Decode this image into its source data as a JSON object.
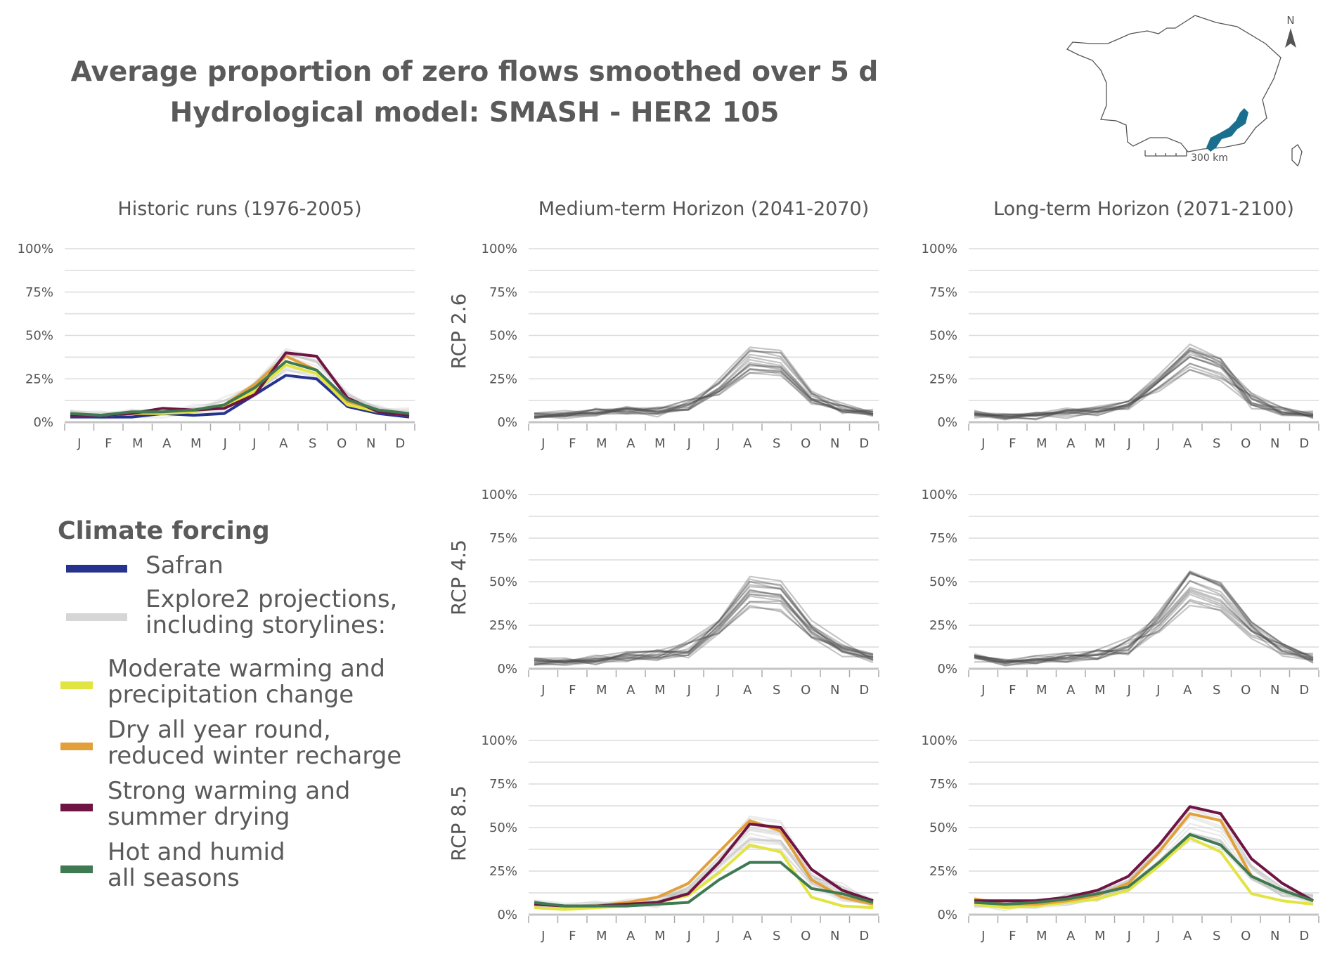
{
  "title_line1": "Average proportion of zero flows smoothed over 5 d",
  "title_line2": "Hydrological model: SMASH - HER2 105",
  "map": {
    "scale_label": "300 km",
    "north_label": "N",
    "highlight_color": "#1a6f8f"
  },
  "months": [
    "J",
    "F",
    "M",
    "A",
    "M",
    "J",
    "J",
    "A",
    "S",
    "O",
    "N",
    "D"
  ],
  "column_titles": [
    "Historic runs (1976-2005)",
    "Medium-term Horizon (2041-2070)",
    "Long-term Horizon (2071-2100)"
  ],
  "row_labels": [
    "RCP 2.6",
    "RCP 4.5",
    "RCP 8.5"
  ],
  "legend": {
    "title": "Climate forcing",
    "items": [
      {
        "label": "Safran",
        "color": "#25338f"
      },
      {
        "label": "Explore2 projections,\nincluding storylines:",
        "color": "#d6d6d6"
      },
      {
        "label": "Moderate warming and\nprecipitation change",
        "color": "#e2e442"
      },
      {
        "label": "Dry all year round,\nreduced winter recharge",
        "color": "#e2a03a"
      },
      {
        "label": "Strong warming and\nsummer drying",
        "color": "#6f1543"
      },
      {
        "label": "Hot and humid\nall seasons",
        "color": "#3f7a52"
      }
    ]
  },
  "chart_data": [
    {
      "type": "line",
      "panel": "historic",
      "title": "Historic runs (1976-2005)",
      "x": [
        "J",
        "F",
        "M",
        "A",
        "M",
        "J",
        "J",
        "A",
        "S",
        "O",
        "N",
        "D"
      ],
      "ylim": [
        0,
        100
      ],
      "yticks": [
        "0%",
        "25%",
        "50%",
        "75%",
        "100%"
      ],
      "projection_band": {
        "n": 16,
        "color": "#c8c8c8",
        "values": [
          5,
          4,
          5,
          5,
          7,
          10,
          20,
          35,
          31,
          14,
          7,
          5
        ]
      },
      "series": [
        {
          "name": "Safran",
          "color": "#25338f",
          "values": [
            3,
            3,
            3,
            5,
            4,
            5,
            16,
            27,
            25,
            9,
            5,
            3
          ]
        },
        {
          "name": "Moderate warming and precipitation change",
          "color": "#e2e442",
          "values": [
            4,
            4,
            5,
            5,
            6,
            9,
            18,
            33,
            28,
            10,
            6,
            4
          ]
        },
        {
          "name": "Dry all year round, reduced winter recharge",
          "color": "#e2a03a",
          "values": [
            5,
            4,
            5,
            6,
            7,
            10,
            22,
            38,
            30,
            12,
            7,
            5
          ]
        },
        {
          "name": "Strong warming and summer drying",
          "color": "#6f1543",
          "values": [
            4,
            4,
            5,
            8,
            7,
            8,
            16,
            40,
            38,
            14,
            6,
            4
          ]
        },
        {
          "name": "Hot and humid all seasons",
          "color": "#3f7a52",
          "values": [
            5,
            4,
            6,
            6,
            7,
            10,
            20,
            35,
            30,
            13,
            7,
            5
          ]
        }
      ]
    },
    {
      "type": "line",
      "panel": "rcp26-mid",
      "title": "Medium-term Horizon (2041-2070)",
      "row": "RCP 2.6",
      "ylim": [
        0,
        100
      ],
      "projection_band": {
        "n": 16,
        "color": "#4a4a4a",
        "values": [
          4,
          4,
          5,
          6,
          6,
          9,
          20,
          36,
          34,
          14,
          8,
          5
        ]
      }
    },
    {
      "type": "line",
      "panel": "rcp26-long",
      "title": "Long-term Horizon (2071-2100)",
      "row": "RCP 2.6",
      "ylim": [
        0,
        100
      ],
      "projection_band": {
        "n": 16,
        "color": "#4a4a4a",
        "values": [
          4,
          3,
          4,
          5,
          6,
          9,
          22,
          36,
          30,
          12,
          6,
          4
        ]
      }
    },
    {
      "type": "line",
      "panel": "rcp45-mid",
      "title": "Medium-term Horizon (2041-2070)",
      "row": "RCP 4.5",
      "ylim": [
        0,
        100
      ],
      "projection_band": {
        "n": 16,
        "color": "#4a4a4a",
        "values": [
          4,
          4,
          5,
          7,
          8,
          11,
          24,
          44,
          42,
          22,
          11,
          6
        ]
      }
    },
    {
      "type": "line",
      "panel": "rcp45-long",
      "title": "Long-term Horizon (2071-2100)",
      "row": "RCP 4.5",
      "ylim": [
        0,
        100
      ],
      "projection_band": {
        "n": 16,
        "color": "#4a4a4a",
        "values": [
          6,
          4,
          5,
          7,
          8,
          12,
          26,
          46,
          40,
          22,
          11,
          6
        ]
      }
    },
    {
      "type": "line",
      "panel": "rcp85-mid",
      "title": "Medium-term Horizon (2041-2070)",
      "row": "RCP 8.5",
      "ylim": [
        0,
        100
      ],
      "projection_band": {
        "n": 16,
        "color": "#bdbdbd",
        "values": [
          6,
          4,
          5,
          6,
          7,
          14,
          30,
          46,
          44,
          20,
          12,
          6
        ]
      },
      "series": [
        {
          "name": "Moderate warming and precipitation change",
          "color": "#e2e442",
          "values": [
            4,
            3,
            4,
            5,
            7,
            11,
            24,
            40,
            36,
            10,
            5,
            4
          ]
        },
        {
          "name": "Dry all year round, reduced winter recharge",
          "color": "#e2a03a",
          "values": [
            6,
            5,
            5,
            7,
            10,
            18,
            36,
            54,
            48,
            20,
            10,
            6
          ]
        },
        {
          "name": "Strong warming and summer drying",
          "color": "#6f1543",
          "values": [
            6,
            5,
            5,
            6,
            7,
            12,
            30,
            52,
            50,
            26,
            14,
            8
          ]
        },
        {
          "name": "Hot and humid all seasons",
          "color": "#3f7a52",
          "values": [
            7,
            5,
            5,
            5,
            6,
            7,
            20,
            30,
            30,
            15,
            12,
            7
          ]
        }
      ]
    },
    {
      "type": "line",
      "panel": "rcp85-long",
      "title": "Long-term Horizon (2071-2100)",
      "row": "RCP 8.5",
      "ylim": [
        0,
        100
      ],
      "projection_band": {
        "n": 16,
        "color": "#bdbdbd",
        "values": [
          6,
          5,
          6,
          8,
          10,
          18,
          36,
          55,
          50,
          26,
          14,
          8
        ]
      },
      "series": [
        {
          "name": "Moderate warming and precipitation change",
          "color": "#e2e442",
          "values": [
            6,
            4,
            5,
            7,
            9,
            14,
            28,
            44,
            36,
            12,
            8,
            6
          ]
        },
        {
          "name": "Dry all year round, reduced winter recharge",
          "color": "#e2a03a",
          "values": [
            9,
            6,
            6,
            8,
            11,
            18,
            36,
            58,
            54,
            22,
            14,
            8
          ]
        },
        {
          "name": "Strong warming and summer drying",
          "color": "#6f1543",
          "values": [
            8,
            8,
            8,
            10,
            14,
            22,
            40,
            62,
            58,
            32,
            18,
            8
          ]
        },
        {
          "name": "Hot and humid all seasons",
          "color": "#3f7a52",
          "values": [
            7,
            6,
            7,
            9,
            12,
            16,
            30,
            46,
            40,
            22,
            14,
            8
          ]
        }
      ]
    }
  ]
}
